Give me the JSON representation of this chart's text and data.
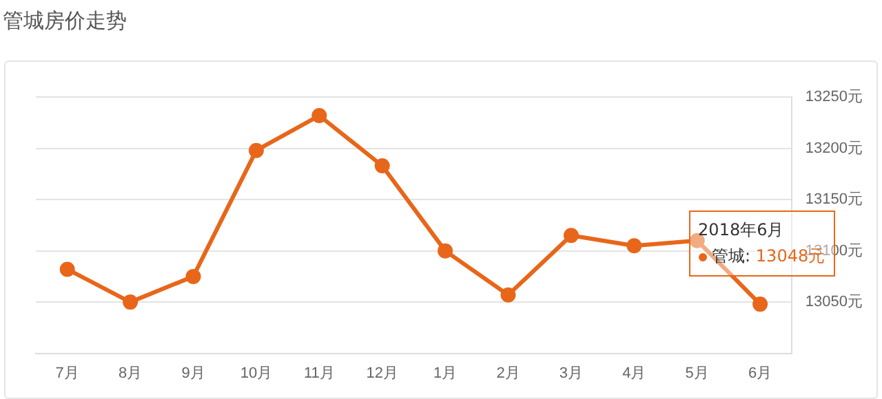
{
  "chart_data": {
    "type": "line",
    "title": "管城房价走势",
    "categories": [
      "7月",
      "8月",
      "9月",
      "10月",
      "11月",
      "12月",
      "1月",
      "2月",
      "3月",
      "4月",
      "5月",
      "6月"
    ],
    "series": [
      {
        "color": "#e8661a",
        "values": [
          13082,
          13050,
          13075,
          13198,
          13232,
          13183,
          13100,
          13057,
          13115,
          13105,
          13110,
          13048
        ],
        "value_labels": [
          null,
          null,
          null,
          null,
          null,
          null,
          null,
          null,
          null,
          null,
          null,
          "13048元"
        ]
      }
    ],
    "ylim": [
      13000,
      13250
    ],
    "yticks": [
      {
        "value": 13000,
        "label": null
      },
      {
        "value": 13050,
        "label": "13050元"
      },
      {
        "value": 13100,
        "label": "13100元"
      },
      {
        "value": 13150,
        "label": "13150元"
      },
      {
        "value": 13200,
        "label": "13200元"
      },
      {
        "value": 13250,
        "label": "13250元"
      }
    ],
    "grid": "y",
    "legend": false,
    "marker": "circle",
    "line_style": "solid",
    "annotations": [
      "2018年6月",
      "管城:"
    ]
  }
}
